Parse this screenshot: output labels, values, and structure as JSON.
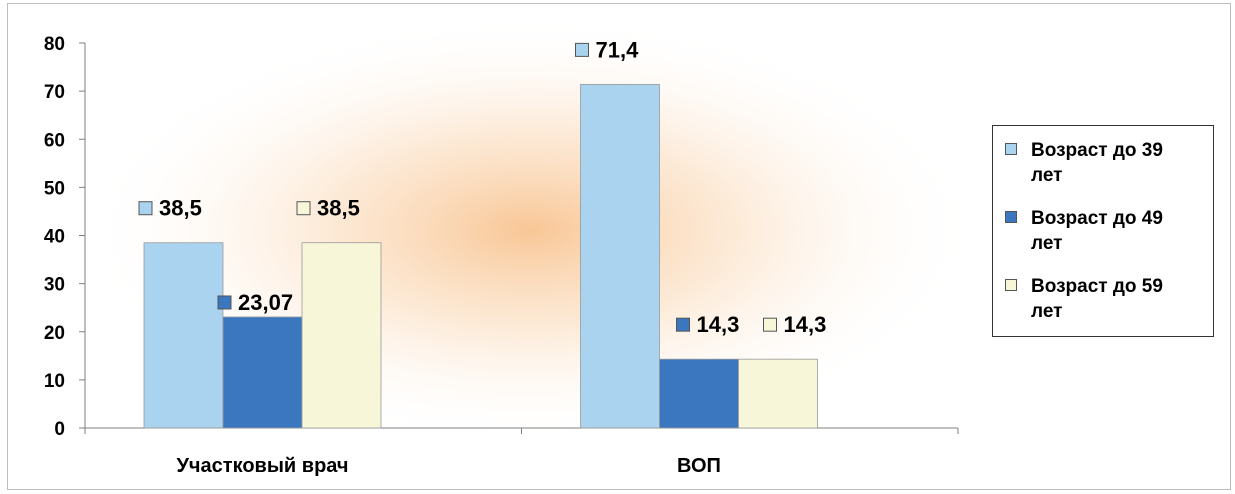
{
  "chart_data": {
    "type": "bar",
    "categories": [
      "Участковый врач",
      "ВОП"
    ],
    "series": [
      {
        "name": "Возраст до 39 лет",
        "values": [
          38.5,
          71.4
        ],
        "labels": [
          "38,5",
          "71,4"
        ],
        "color": "#a9d3ef"
      },
      {
        "name": "Возраст до 49 лет",
        "values": [
          23.07,
          14.3
        ],
        "labels": [
          "23,07",
          "14,3"
        ],
        "color": "#3a77bf"
      },
      {
        "name": "Возраст до 59 лет",
        "values": [
          38.5,
          14.3
        ],
        "labels": [
          "38,5",
          "14,3"
        ],
        "color": "#f7f6d9"
      }
    ],
    "ylim": [
      0,
      80
    ],
    "yticks": [
      "0",
      "10",
      "20",
      "30",
      "40",
      "50",
      "60",
      "70",
      "80"
    ],
    "legend": "right",
    "grid": false
  },
  "legend": {
    "items": [
      {
        "line1": "Возраст до 39",
        "line2": "лет"
      },
      {
        "line1": "Возраст до 49",
        "line2": "лет"
      },
      {
        "line1": "Возраст до 59",
        "line2": "лет"
      }
    ]
  }
}
